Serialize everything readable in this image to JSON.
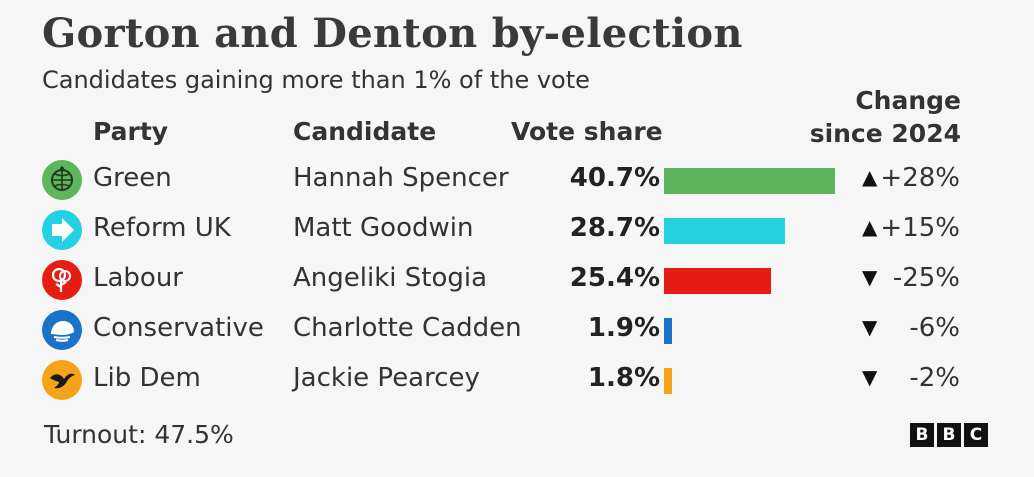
{
  "title": "Gorton and Denton by-election",
  "subtitle": "Candidates gaining more than 1% of the vote",
  "headers": {
    "party": "Party",
    "candidate": "Candidate",
    "vote_share": "Vote share",
    "change_line1": "Change",
    "change_line2": "since 2024"
  },
  "chart_data": {
    "type": "bar",
    "title": "Gorton and Denton by-election",
    "subtitle": "Candidates gaining more than 1% of the vote",
    "categories": [
      "Green",
      "Reform UK",
      "Labour",
      "Conservative",
      "Lib Dem"
    ],
    "values": [
      40.7,
      28.7,
      25.4,
      1.9,
      1.8
    ],
    "unit": "%",
    "xlim": [
      0,
      40.7
    ],
    "rows": [
      {
        "party": "Green",
        "candidate": "Hannah Spencer",
        "share": 40.7,
        "share_label": "40.7%",
        "change_dir": "up",
        "change_symbol": "▲",
        "change_label": "+28%",
        "color": "#5db55e",
        "icon": "green-party-globe-icon"
      },
      {
        "party": "Reform UK",
        "candidate": "Matt Goodwin",
        "share": 28.7,
        "share_label": "28.7%",
        "change_dir": "up",
        "change_symbol": "▲",
        "change_label": "+15%",
        "color": "#23d1e0",
        "icon": "reform-arrow-icon"
      },
      {
        "party": "Labour",
        "candidate": "Angeliki Stogia",
        "share": 25.4,
        "share_label": "25.4%",
        "change_dir": "down",
        "change_symbol": "▼",
        "change_label": "-25%",
        "color": "#e51d13",
        "icon": "labour-rose-icon"
      },
      {
        "party": "Conservative",
        "candidate": "Charlotte Cadden",
        "share": 1.9,
        "share_label": "1.9%",
        "change_dir": "down",
        "change_symbol": "▼",
        "change_label": "-6%",
        "color": "#1a72c9",
        "icon": "conservative-tree-icon"
      },
      {
        "party": "Lib Dem",
        "candidate": "Jackie Pearcey",
        "share": 1.8,
        "share_label": "1.8%",
        "change_dir": "down",
        "change_symbol": "▼",
        "change_label": "-2%",
        "color": "#f6a31a",
        "icon": "libdem-bird-icon"
      }
    ]
  },
  "footer": {
    "turnout": "Turnout: 47.5%",
    "brand": [
      "B",
      "B",
      "C"
    ]
  }
}
